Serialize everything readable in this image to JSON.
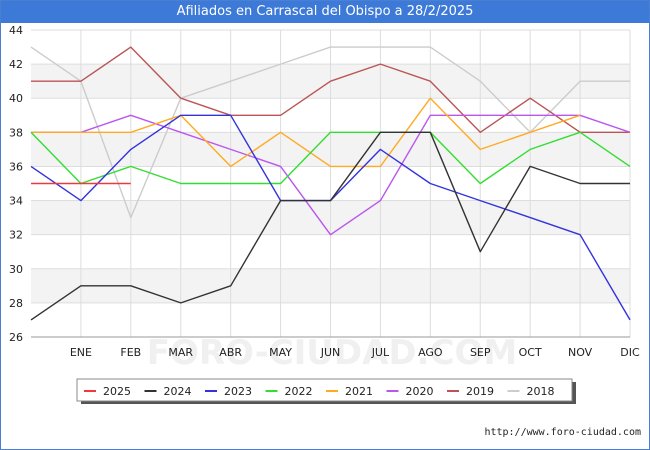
{
  "title": "Afiliados en Carrascal del Obispo a 28/2/2025",
  "footer_url": "http://www.foro-ciudad.com",
  "watermark": "FORO-CIUDAD.COM",
  "chart_data": {
    "type": "line",
    "title": "Afiliados en Carrascal del Obispo a 28/2/2025",
    "xlabel": "",
    "ylabel": "",
    "categories": [
      "",
      "ENE",
      "FEB",
      "MAR",
      "ABR",
      "MAY",
      "JUN",
      "JUL",
      "AGO",
      "SEP",
      "OCT",
      "NOV",
      "DIC"
    ],
    "ylim": [
      26,
      44
    ],
    "yticks": [
      26,
      28,
      30,
      32,
      34,
      36,
      38,
      40,
      42,
      44
    ],
    "grid": true,
    "legend_position": "bottom",
    "series": [
      {
        "name": "2025",
        "color": "#ee3a3a",
        "values": [
          35,
          35,
          35,
          null,
          null,
          null,
          null,
          null,
          null,
          null,
          null,
          null,
          null
        ]
      },
      {
        "name": "2024",
        "color": "#333333",
        "values": [
          27,
          29,
          29,
          28,
          29,
          34,
          34,
          38,
          38,
          31,
          36,
          35,
          35
        ]
      },
      {
        "name": "2023",
        "color": "#3333dd",
        "values": [
          36,
          34,
          37,
          39,
          39,
          34,
          34,
          37,
          35,
          34,
          33,
          32,
          27
        ]
      },
      {
        "name": "2022",
        "color": "#33dd33",
        "values": [
          38,
          35,
          36,
          35,
          35,
          35,
          38,
          38,
          38,
          35,
          37,
          38,
          36
        ]
      },
      {
        "name": "2021",
        "color": "#ffaa22",
        "values": [
          38,
          38,
          38,
          39,
          36,
          38,
          36,
          36,
          40,
          37,
          38,
          39,
          null
        ]
      },
      {
        "name": "2020",
        "color": "#bb55ee",
        "values": [
          38,
          38,
          39,
          38,
          37,
          36,
          32,
          34,
          39,
          39,
          39,
          39,
          38
        ]
      },
      {
        "name": "2019",
        "color": "#bb5555",
        "values": [
          41,
          41,
          43,
          40,
          39,
          39,
          41,
          42,
          41,
          38,
          40,
          38,
          38
        ]
      },
      {
        "name": "2018",
        "color": "#cccccc",
        "values": [
          43,
          41,
          33,
          40,
          41,
          42,
          43,
          43,
          43,
          41,
          38,
          41,
          41
        ]
      }
    ]
  }
}
